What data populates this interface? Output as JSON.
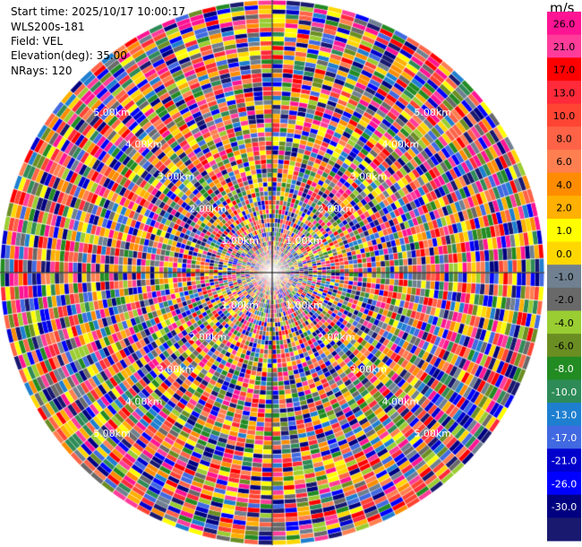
{
  "info": {
    "start_time": "Start time: 2025/10/17 10:00:17",
    "instrument": "WLS200s-181",
    "field": "Field: VEL",
    "elevation": "Elevation(deg): 35.00",
    "nrays": "NRays: 120"
  },
  "chart_data": {
    "type": "heatmap",
    "projection": "polar-ppi",
    "field": "VEL",
    "units": "m/s",
    "nrays": 120,
    "max_range_km": 6,
    "range_rings_km": [
      1,
      2,
      3,
      4,
      5,
      6
    ],
    "ring_labels": [
      "1.00km",
      "2.00km",
      "3.00km",
      "4.00km",
      "5.00km"
    ],
    "colorbar": {
      "label": "m/s",
      "ticks": [
        "26.0",
        "21.0",
        "17.0",
        "13.0",
        "10.0",
        "8.0",
        "6.0",
        "4.0",
        "2.0",
        "1.0",
        "0.0",
        "-1.0",
        "-2.0",
        "-4.0",
        "-6.0",
        "-8.0",
        "-10.0",
        "-13.0",
        "-17.0",
        "-21.0",
        "-26.0",
        "-30.0"
      ],
      "colors": [
        "#ff1493",
        "#ff3c9a",
        "#ff0000",
        "#ff2a3a",
        "#ff4433",
        "#ff6347",
        "#ff7f50",
        "#ff8c00",
        "#ffb000",
        "#ffff00",
        "#ffd700",
        "#708090",
        "#696969",
        "#9acd32",
        "#6b8e23",
        "#228b22",
        "#2e8b57",
        "#1e7fd0",
        "#4169e1",
        "#0000cd",
        "#0000ff",
        "#000080",
        "#191970"
      ],
      "vmin": -30.0,
      "vmax": 30.0
    }
  }
}
